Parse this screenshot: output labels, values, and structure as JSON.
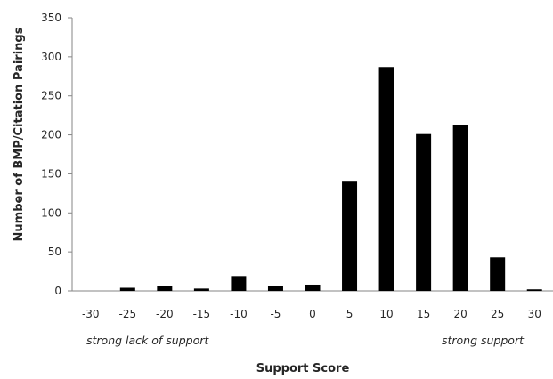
{
  "chart_data": {
    "type": "bar",
    "categories": [
      "-30",
      "-25",
      "-20",
      "-15",
      "-10",
      "-5",
      "0",
      "5",
      "10",
      "15",
      "20",
      "25",
      "30"
    ],
    "values": [
      0,
      4,
      6,
      3,
      19,
      6,
      8,
      140,
      287,
      201,
      213,
      43,
      2
    ],
    "xlabel": "Support Score",
    "ylabel": "Number of BMP/Citation Pairings",
    "ylim": [
      0,
      350
    ],
    "yticks": [
      0,
      50,
      100,
      150,
      200,
      250,
      300,
      350
    ],
    "grid": false,
    "legend": "none",
    "bar_color": "#000000",
    "axis_color": "#868686",
    "annotations": {
      "left": "strong lack of support",
      "right": "strong support"
    }
  }
}
